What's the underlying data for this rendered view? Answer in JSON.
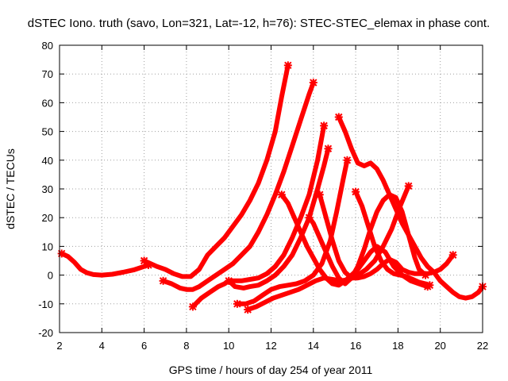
{
  "chart_data": {
    "type": "line",
    "title": "dSTEC Iono. truth (savo, Lon=321, Lat=-12, h=76): STEC-STEC_elemax in phase cont.",
    "xlabel": "GPS time / hours of day 254 of year 2011",
    "ylabel": "dSTEC  / TECUs",
    "xlim": [
      2,
      22
    ],
    "ylim": [
      -20,
      80
    ],
    "xticks": [
      2,
      4,
      6,
      8,
      10,
      12,
      14,
      16,
      18,
      20,
      22
    ],
    "yticks": [
      -20,
      -10,
      0,
      10,
      20,
      30,
      40,
      50,
      60,
      70,
      80
    ],
    "grid": true,
    "series_color": "#ff0000",
    "series": [
      {
        "x": [
          2.1,
          2.4,
          2.7,
          3.0,
          3.3,
          3.6,
          4.0,
          4.5,
          5.0,
          5.5,
          6.0,
          6.2
        ],
        "y": [
          7.5,
          6.5,
          4.5,
          2.0,
          0.8,
          0.2,
          0.0,
          0.3,
          1.0,
          1.8,
          3.0,
          3.5
        ]
      },
      {
        "x": [
          6.0,
          6.3,
          6.6,
          7.0,
          7.4,
          7.8,
          8.2,
          8.6,
          9.0,
          9.4,
          9.8,
          10.2,
          10.6,
          11.0,
          11.4,
          11.8,
          12.2,
          12.5,
          12.8
        ],
        "y": [
          5,
          4,
          3,
          2,
          0.5,
          -0.5,
          -0.5,
          2,
          7,
          10,
          13,
          17,
          21,
          26,
          32,
          40,
          50,
          62,
          73
        ]
      },
      {
        "x": [
          6.9,
          7.3,
          7.7,
          8.0,
          8.3,
          8.6,
          9.0,
          9.4,
          9.8,
          10.2,
          10.6,
          11.0,
          11.4,
          11.8,
          12.2,
          12.6,
          13.0,
          13.4,
          13.8,
          14.0
        ],
        "y": [
          -2,
          -3,
          -4.5,
          -5,
          -5,
          -4,
          -2,
          0,
          2,
          4,
          7,
          10,
          15,
          21,
          28,
          36,
          45,
          54,
          63,
          67
        ]
      },
      {
        "x": [
          8.3,
          8.7,
          9.1,
          9.5,
          9.8,
          10.0,
          10.3,
          10.6,
          11.0,
          11.4,
          11.8,
          12.2,
          12.6,
          13.0,
          13.4,
          13.8,
          14.2,
          14.5
        ],
        "y": [
          -11,
          -8,
          -6,
          -4,
          -3,
          -2,
          -2,
          -2,
          -1.5,
          -1,
          0.5,
          3,
          7,
          13,
          20,
          28,
          40,
          52
        ]
      },
      {
        "x": [
          10.0,
          10.3,
          10.7,
          11.0,
          11.4,
          11.8,
          12.2,
          12.6,
          13.0,
          13.4,
          13.8,
          14.2,
          14.5,
          14.7
        ],
        "y": [
          -2,
          -4,
          -4.5,
          -4,
          -3.5,
          -2,
          0,
          3,
          7,
          13,
          20,
          30,
          38,
          44
        ]
      },
      {
        "x": [
          10.4,
          10.8,
          11.2,
          11.6,
          12.0,
          12.4,
          12.8,
          13.2,
          13.6,
          14.0,
          14.4,
          14.8,
          15.1,
          15.4,
          15.6
        ],
        "y": [
          -10,
          -10,
          -9,
          -7,
          -5,
          -4,
          -3.5,
          -3,
          -2,
          0,
          4,
          12,
          22,
          33,
          40
        ]
      },
      {
        "x": [
          10.9,
          11.3,
          11.7,
          12.1,
          12.5,
          12.9,
          13.3,
          13.7,
          14.1,
          14.5,
          14.9,
          15.3,
          15.7,
          16.1,
          16.5,
          16.9,
          17.3,
          17.7,
          18.1,
          18.5
        ],
        "y": [
          -12,
          -11,
          -9.5,
          -8,
          -7,
          -6,
          -5,
          -3.5,
          -2,
          -1,
          -1.5,
          -2,
          -1.5,
          0,
          2,
          5,
          10,
          16,
          24,
          31
        ]
      },
      {
        "x": [
          12.5,
          12.8,
          13.1,
          13.4,
          13.7,
          14.0,
          14.3,
          14.6,
          14.9,
          15.2,
          15.5,
          15.8,
          16.1,
          16.4,
          16.7,
          17.0,
          17.4,
          17.8,
          18.2,
          18.6,
          19.0,
          19.4
        ],
        "y": [
          28,
          25,
          20,
          15,
          10,
          6,
          2,
          -1,
          -3,
          -3.5,
          -2,
          0,
          2,
          5,
          8,
          10,
          8,
          3,
          0,
          -2,
          -3,
          -4
        ]
      },
      {
        "x": [
          13.8,
          14.0,
          14.3,
          14.6,
          14.9,
          15.2,
          15.5,
          15.8,
          16.1,
          16.4,
          16.7,
          17.0,
          17.3,
          17.6,
          17.9,
          18.2,
          18.5,
          18.8,
          19.0,
          19.3
        ],
        "y": [
          20,
          18,
          13,
          8,
          3,
          -1,
          -3,
          -1,
          3,
          9,
          16,
          22,
          26,
          28,
          27,
          22,
          14,
          6,
          2,
          0
        ]
      },
      {
        "x": [
          14.3,
          14.6,
          14.9,
          15.2,
          15.5,
          15.8,
          16.1,
          16.4,
          16.7,
          17.0,
          17.3,
          17.6,
          17.9,
          18.2,
          18.5,
          18.8,
          19.1,
          19.4,
          19.7,
          20.0,
          20.3,
          20.6
        ],
        "y": [
          28,
          20,
          12,
          5,
          1,
          -1,
          -1,
          -0.5,
          0.5,
          2,
          4,
          5.5,
          4.5,
          2,
          1,
          0.5,
          0.5,
          0.5,
          1,
          2,
          4,
          7
        ]
      },
      {
        "x": [
          15.2,
          15.5,
          15.8,
          16.1,
          16.4,
          16.7,
          17.0,
          17.3,
          17.6,
          17.9,
          18.2,
          18.5,
          18.8,
          19.1,
          19.4,
          19.7,
          20.0,
          20.3,
          20.6,
          20.9,
          21.2,
          21.5,
          21.8,
          22.0
        ],
        "y": [
          55,
          50,
          44,
          39,
          38,
          39,
          37,
          33,
          28,
          23,
          18,
          14,
          10,
          6,
          3,
          1,
          -2,
          -4,
          -6,
          -7.5,
          -8,
          -7.5,
          -6,
          -4
        ]
      },
      {
        "x": [
          16.0,
          16.3,
          16.6,
          16.9,
          17.2,
          17.5,
          17.8,
          18.1,
          18.4,
          18.7,
          19.0,
          19.3,
          19.5
        ],
        "y": [
          29,
          24,
          17,
          10,
          5,
          2,
          0.5,
          0,
          -0.5,
          -1.5,
          -2.5,
          -3,
          -3.5
        ]
      }
    ]
  }
}
